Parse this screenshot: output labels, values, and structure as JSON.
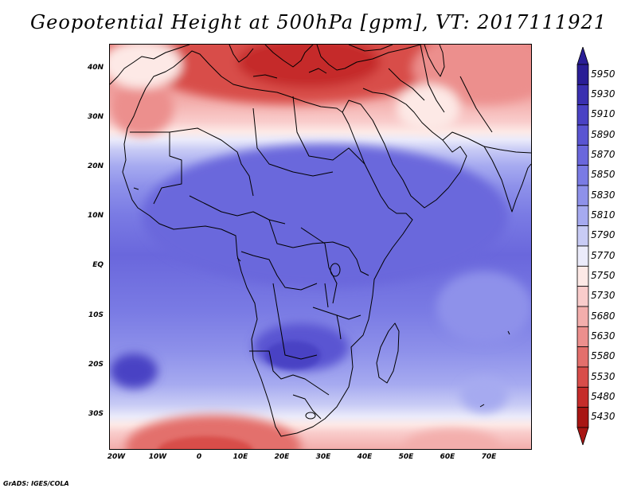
{
  "title": "Geopotential Height at 500hPa [gpm], VT: 2017111921",
  "footer": "GrADS: IGES/COLA",
  "y_ticks": [
    "40N",
    "30N",
    "20N",
    "10N",
    "EQ",
    "10S",
    "20S",
    "30S"
  ],
  "x_ticks": [
    "20W",
    "10W",
    "0",
    "10E",
    "20E",
    "30E",
    "40E",
    "50E",
    "60E",
    "70E"
  ],
  "colorbar": {
    "levels": [
      "5950",
      "5930",
      "5910",
      "5890",
      "5870",
      "5850",
      "5830",
      "5810",
      "5790",
      "5770",
      "5750",
      "5730",
      "5680",
      "5630",
      "5580",
      "5530",
      "5480",
      "5430"
    ],
    "colors": [
      "#2a1e96",
      "#3a30b0",
      "#4a42c4",
      "#5a55d2",
      "#6a67dc",
      "#7a7be4",
      "#8e91ea",
      "#a6aaf0",
      "#c8cbf5",
      "#ebebfa",
      "#fde9e6",
      "#f9cccb",
      "#f3aeac",
      "#ec8f8d",
      "#e36f6c",
      "#d84d4a",
      "#c52c2a",
      "#a81513"
    ]
  },
  "map": {
    "region": "Africa",
    "variable": "500hPa geopotential height",
    "units": "gpm"
  }
}
